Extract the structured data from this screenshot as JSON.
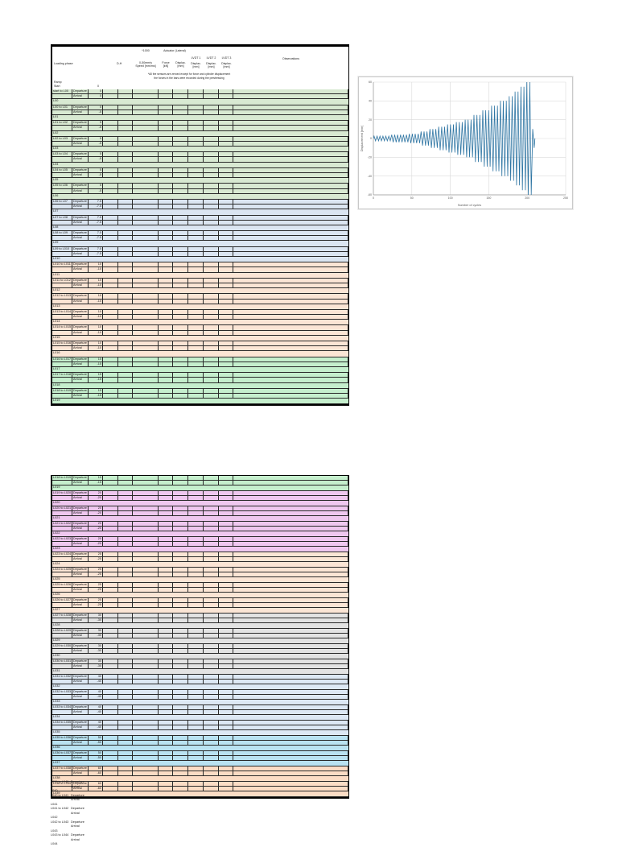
{
  "header": {
    "loading_phase": "Loading phase",
    "dh": "D-H",
    "thousand": "*1000",
    "actuator": "Actuator (Lateral)",
    "lvdt1": "LVDT 1",
    "lvdt2": "LVDT 2",
    "lvdt3": "LVDT 3",
    "speed_l1": "0-50mm/s",
    "speed_l2": "Speed [mm/ms]",
    "force_l1": "Force",
    "force_l2": "[kN]",
    "displ_l1": "Displac.",
    "displ_l2": "[mm]",
    "observations": "Observations",
    "note1": "*All the sensors are zeroed except for force and cylinder displacement",
    "note2": "the forces in the bars were recorded during the prestressing",
    "ramp": "Ramp",
    "start": "Start",
    "start_value": "0",
    "departure": "Departure",
    "arrival": "Arrival"
  },
  "colors": {
    "green1": "#d8e9d2",
    "blue": "#dbe5f1",
    "orange": "#fbe5d5",
    "mint": "#c5efcd",
    "pink": "#efc7ef",
    "gray": "#e3e3e3",
    "paleblue": "#dde8f4",
    "cyan": "#b9e2f1",
    "orange2": "#fbdcc5",
    "grid_border": "#2a2a2a",
    "chart_line": "#2e75a3",
    "chart_grid": "#d9d9d9"
  },
  "table1": {
    "row_height": 6.2,
    "sections": [
      {
        "bg": "green1",
        "blocks": [
          {
            "label": "start to L00",
            "dep": "0",
            "arr": "0",
            "sep": "L00"
          },
          {
            "label": "L00 to L01",
            "dep": "5",
            "arr": "-5",
            "sep": "L01"
          },
          {
            "label": "L01 to L02",
            "dep": "5",
            "arr": "-5",
            "sep": "L02"
          },
          {
            "label": "L02 to L03",
            "dep": "5",
            "arr": "-5",
            "sep": "L03"
          },
          {
            "label": "L03 to L04",
            "dep": "5",
            "arr": "-5",
            "sep": "L04"
          },
          {
            "label": "L04 to L05",
            "dep": "5",
            "arr": "-5",
            "sep": "L05"
          },
          {
            "label": "L05 to L06",
            "dep": "5",
            "arr": "-5",
            "sep": "L06"
          }
        ]
      },
      {
        "bg": "blue",
        "blocks": [
          {
            "label": "L06 to L07",
            "dep": "7.5",
            "arr": "-7.5",
            "sep": "L07"
          },
          {
            "label": "L07 to L08",
            "dep": "7.5",
            "arr": "-7.5",
            "sep": "L08"
          },
          {
            "label": "L08 to L09",
            "dep": "7.5",
            "arr": "-7.5",
            "sep": "L09"
          },
          {
            "label": "L09 to L010",
            "dep": "7.5",
            "arr": "-7.5",
            "sep": "L010"
          }
        ]
      },
      {
        "bg": "orange",
        "blocks": [
          {
            "label": "L010 to L011",
            "dep": "10",
            "arr": "-10",
            "sep": "L011"
          },
          {
            "label": "L011 to L012",
            "dep": "10",
            "arr": "-10",
            "sep": "L012"
          },
          {
            "label": "L012 to L013",
            "dep": "10",
            "arr": "-10",
            "sep": "L013"
          },
          {
            "label": "L013 to L014",
            "dep": "10",
            "arr": "-10",
            "sep": "L014"
          },
          {
            "label": "L014 to L015",
            "dep": "10",
            "arr": "-10",
            "sep": "L015"
          },
          {
            "label": "L015 to L016",
            "dep": "10",
            "arr": "-10",
            "sep": "L016"
          }
        ]
      },
      {
        "bg": "mint",
        "blocks": [
          {
            "label": "L016 to L017",
            "dep": "15",
            "arr": "-15",
            "sep": "L017"
          },
          {
            "label": "L017 to L018",
            "dep": "15",
            "arr": "-15",
            "sep": "L018"
          },
          {
            "label": "L018 to L019",
            "dep": "15",
            "arr": "-15",
            "sep": "L019"
          }
        ]
      }
    ]
  },
  "table2": {
    "row_height": 6.0,
    "sections": [
      {
        "bg": "mint",
        "blocks": [
          {
            "label": "L018 to L019",
            "dep": "15",
            "arr": "-15",
            "sep": "L019"
          }
        ]
      },
      {
        "bg": "pink",
        "blocks": [
          {
            "label": "L019 to L020",
            "dep": "20",
            "arr": "-20",
            "sep": "L020"
          },
          {
            "label": "L020 to L021",
            "dep": "20",
            "arr": "-20",
            "sep": "L021"
          },
          {
            "label": "L021 to L022",
            "dep": "20",
            "arr": "-20",
            "sep": "L022"
          },
          {
            "label": "L022 to L023",
            "dep": "20",
            "arr": "-20",
            "sep": "L023"
          }
        ]
      },
      {
        "bg": "orange",
        "blocks": [
          {
            "label": "L023 to L024",
            "dep": "25",
            "arr": "-25",
            "sep": "L024"
          },
          {
            "label": "L024 to L025",
            "dep": "25",
            "arr": "-25",
            "sep": "L025"
          },
          {
            "label": "L025 to L026",
            "dep": "25",
            "arr": "-25",
            "sep": "L026"
          },
          {
            "label": "L026 to L027",
            "dep": "25",
            "arr": "-25",
            "sep": "L027"
          }
        ]
      },
      {
        "bg": "gray",
        "blocks": [
          {
            "label": "L027 to L028",
            "dep": "30",
            "arr": "-30",
            "sep": "L028"
          },
          {
            "label": "L028 to L029",
            "dep": "30",
            "arr": "-30",
            "sep": "L029"
          },
          {
            "label": "L029 to L030",
            "dep": "30",
            "arr": "-30",
            "sep": "L030"
          },
          {
            "label": "L030 to L031",
            "dep": "30",
            "arr": "-30",
            "sep": "L031"
          }
        ]
      },
      {
        "bg": "paleblue",
        "blocks": [
          {
            "label": "L031 to L032",
            "dep": "40",
            "arr": "-40",
            "sep": "L032"
          },
          {
            "label": "L032 to L033",
            "dep": "40",
            "arr": "-40",
            "sep": "L033"
          },
          {
            "label": "L033 to L034",
            "dep": "40",
            "arr": "-40",
            "sep": "L034"
          },
          {
            "label": "L034 to L035",
            "dep": "40",
            "arr": "-40",
            "sep": "L035"
          }
        ]
      },
      {
        "bg": "cyan",
        "blocks": [
          {
            "label": "L035 to L036",
            "dep": "50",
            "arr": "-50",
            "sep": "L036"
          },
          {
            "label": "L036 to L037",
            "dep": "50",
            "arr": "-50",
            "sep": "L037"
          }
        ]
      },
      {
        "bg": "orange2",
        "blocks": [
          {
            "label": "L037 to L038",
            "dep": "60",
            "arr": "-60",
            "sep": "L038"
          },
          {
            "label": "L038 to L039",
            "dep": "60",
            "arr": "-60",
            "sep": "L039"
          }
        ]
      }
    ]
  },
  "tail_rows": [
    {
      "label": "L039 to L040",
      "dep": "Departure",
      "arr": "Arrival",
      "sep": "L040"
    },
    {
      "label": "L040 to L041",
      "dep": "Departure",
      "arr": "Arrival",
      "sep": "L041"
    },
    {
      "label": "L041 to L042",
      "dep": "Departure",
      "arr": "Arrival",
      "sep": "L042"
    },
    {
      "label": "L042 to L043",
      "dep": "Departure",
      "arr": "Arrival",
      "sep": "L043"
    },
    {
      "label": "L043 to L044",
      "dep": "Departure",
      "arr": "Arrival",
      "sep": "L044"
    }
  ],
  "chart_data": {
    "type": "line",
    "title": "",
    "xlabel": "Number of cycles",
    "ylabel": "Displacement [mm]",
    "xlim": [
      0,
      250
    ],
    "ylim": [
      -60,
      60
    ],
    "x_ticks": [
      0,
      50,
      100,
      150,
      200,
      250
    ],
    "y_ticks": [
      60,
      40,
      20,
      0,
      -20,
      -40,
      -60
    ],
    "grid": true,
    "legend": "none",
    "waveform": "triangular, zero-mean, stepwise increasing amplitude",
    "amplitude_schedule": [
      {
        "amplitude_mm": 2.5,
        "cycles": 6
      },
      {
        "amplitude_mm": 4,
        "cycles": 6
      },
      {
        "amplitude_mm": 5,
        "cycles": 4
      },
      {
        "amplitude_mm": 7.5,
        "cycles": 3
      },
      {
        "amplitude_mm": 10,
        "cycles": 3
      },
      {
        "amplitude_mm": 12.5,
        "cycles": 3
      },
      {
        "amplitude_mm": 15,
        "cycles": 3
      },
      {
        "amplitude_mm": 17.5,
        "cycles": 3
      },
      {
        "amplitude_mm": 20,
        "cycles": 3
      },
      {
        "amplitude_mm": 25,
        "cycles": 3
      },
      {
        "amplitude_mm": 30,
        "cycles": 3
      },
      {
        "amplitude_mm": 35,
        "cycles": 3
      },
      {
        "amplitude_mm": 40,
        "cycles": 3
      },
      {
        "amplitude_mm": 45,
        "cycles": 2
      },
      {
        "amplitude_mm": 50,
        "cycles": 2
      },
      {
        "amplitude_mm": 55,
        "cycles": 2
      },
      {
        "amplitude_mm": 60,
        "cycles": 2
      },
      {
        "amplitude_mm": 10,
        "cycles": 1
      }
    ],
    "x_data_end": 210
  }
}
